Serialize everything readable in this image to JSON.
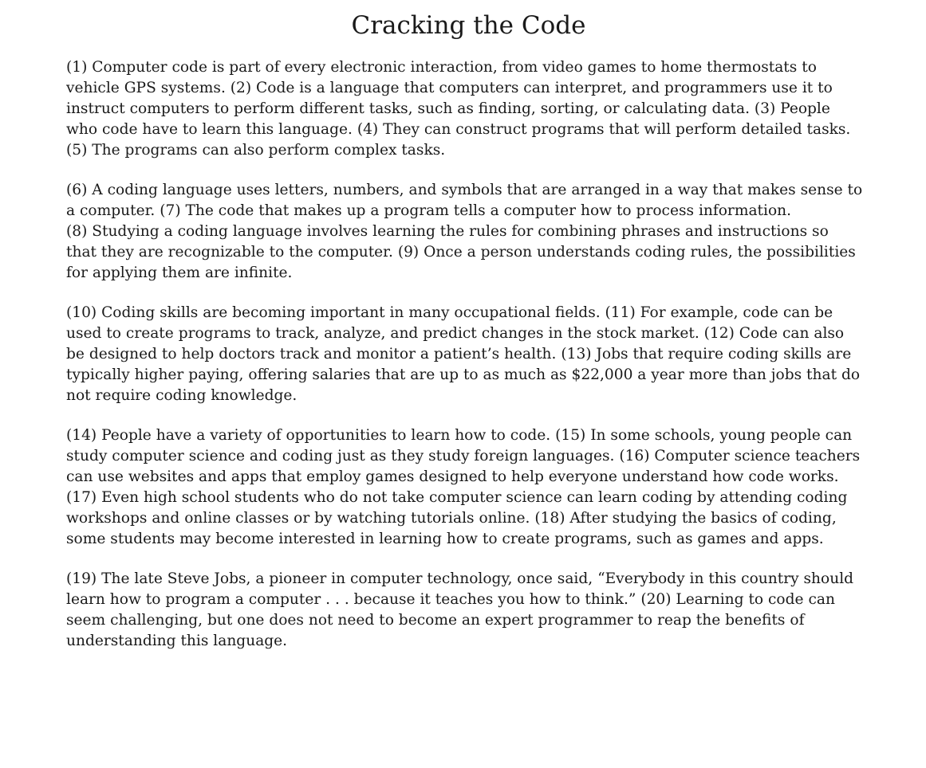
{
  "title": "Cracking the Code",
  "paragraphs": [
    {
      "lines": [
        "(1) Computer code is part of every electronic interaction, from video games to home thermostats to",
        "vehicle GPS systems.  (2) Code is a language that computers can interpret, and programmers use it to",
        "instruct computers to perform different tasks, such as finding, sorting, or calculating data.  (3) People",
        "who code have to learn this language.  (4) They can construct programs that will perform detailed tasks.",
        "(5) The programs can also perform complex tasks."
      ]
    },
    {
      "lines": [
        "(6) A coding language uses letters, numbers, and symbols that are arranged in a way that makes sense to",
        "a computer.  (7) The code that makes up a program tells a computer how to process information.",
        "(8) Studying a coding language involves learning the rules for combining phrases and instructions so",
        "that they are recognizable to the computer.  (9) Once a person understands coding rules, the possibilities",
        "for applying them are infinite."
      ]
    },
    {
      "lines": [
        "(10) Coding skills are becoming important in many occupational fields.  (11) For example, code can be",
        "used to create programs to track, analyze, and predict changes in the stock market.  (12) Code can also",
        "be designed to help doctors track and monitor a patient’s health.  (13) Jobs that require coding skills are",
        "typically higher paying, offering salaries that are up to as much as $22,000 a year more than jobs that do",
        "not require coding knowledge."
      ]
    },
    {
      "lines": [
        "(14) People have a variety of opportunities to learn how to code.  (15) In some schools, young people can",
        "study computer science and coding just as they study foreign languages.  (16) Computer science teachers",
        "can use websites and apps that employ games designed to help everyone understand how code works.",
        "(17) Even high school students who do not take computer science can learn coding by attending coding",
        "workshops and online classes or by watching tutorials online.  (18) After studying the basics of coding,",
        "some students may become interested in learning how to create programs, such as games and apps."
      ]
    },
    {
      "lines": [
        "(19) The late Steve Jobs, a pioneer in computer technology, once said, “Everybody in this country should",
        "learn how to program a computer . . . because it teaches you how to think.”  (20) Learning to code can",
        "seem challenging, but one does not need to become an expert programmer to reap the benefits of",
        "understanding this language."
      ]
    }
  ]
}
